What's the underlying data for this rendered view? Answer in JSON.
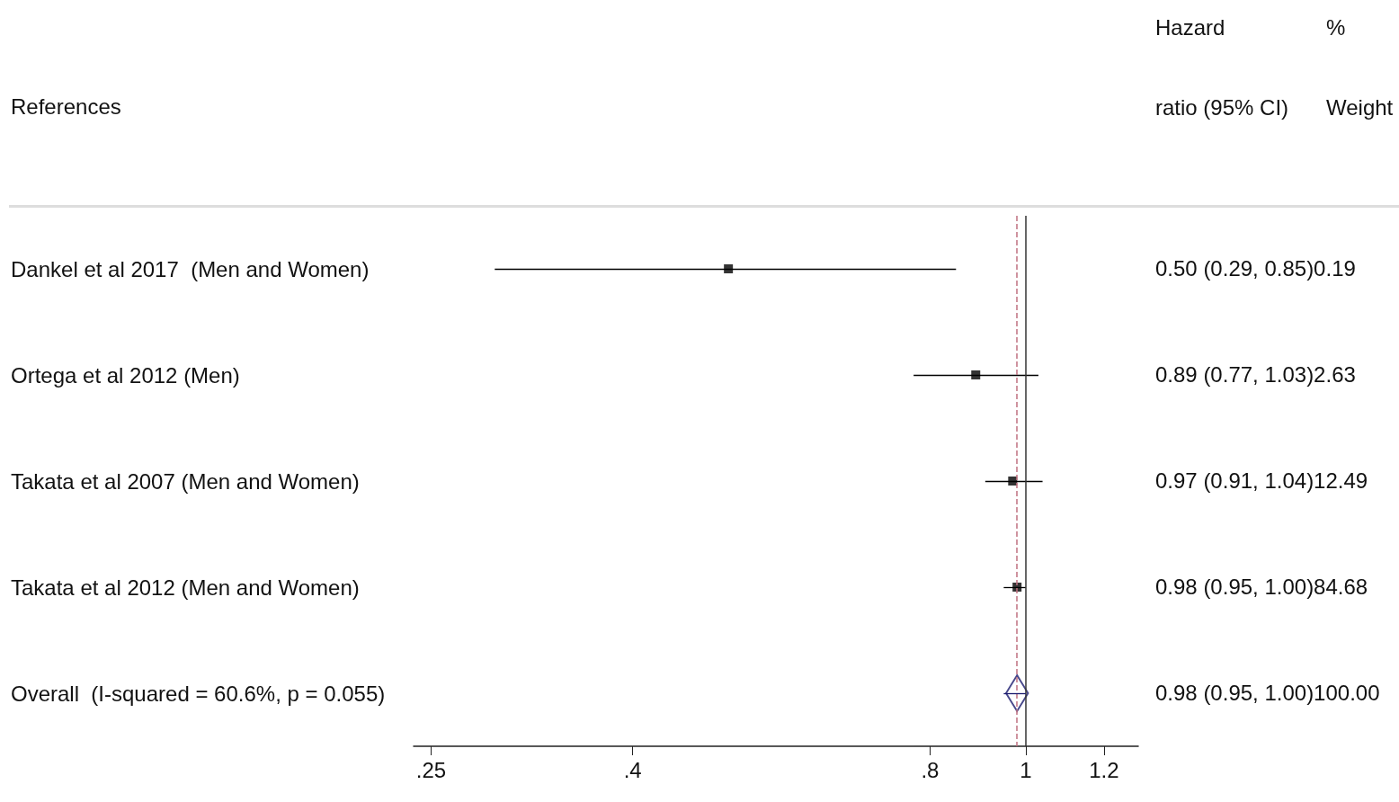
{
  "chart_data": {
    "type": "scatter",
    "orientation": "horizontal",
    "ylabel": "References",
    "categories": [
      "Dankel et al 2017  (Men and Women)",
      "Ortega et al 2012 (Men)",
      "Takata et al 2007 (Men and Women)",
      "Takata et al 2012 (Men and Women)",
      "Overall  (I-squared = 60.6%, p = 0.055)"
    ],
    "series": [
      {
        "color": "#000000",
        "marker": "square",
        "values": [
          0.5,
          0.89,
          0.97,
          0.98,
          null
        ],
        "errors": [
          [
            0.29,
            0.85
          ],
          [
            0.77,
            1.03
          ],
          [
            0.91,
            1.04
          ],
          [
            0.95,
            1.0
          ],
          null
        ]
      },
      {
        "color": "#1a1a6e",
        "marker": "diamond",
        "values": [
          null,
          null,
          null,
          null,
          0.98
        ],
        "errors": [
          null,
          null,
          null,
          null,
          [
            0.95,
            1.0
          ]
        ]
      }
    ],
    "log": "x",
    "xlim": [
      0.24,
      1.3
    ],
    "xticks": [
      {
        "value": 0.25,
        "label": ".25"
      },
      {
        "value": 0.4,
        "label": ".4"
      },
      {
        "value": 0.8,
        "label": ".8"
      },
      1,
      1.2
    ],
    "ref_lines": [
      {
        "axis": "x",
        "value": 1,
        "color": "#333333",
        "line_style": "solid"
      },
      {
        "axis": "x",
        "value": 0.98,
        "color": "#c07080",
        "line_style": "dashed"
      }
    ],
    "annotations": [
      "Hazard\nratio (95% CI)",
      "%\nWeight",
      "0.50 (0.29, 0.85)0.19",
      "0.89 (0.77, 1.03)2.63",
      "0.97 (0.91, 1.04)12.49",
      "0.98 (0.95, 1.00)84.68",
      "0.98 (0.95, 1.00)100.00"
    ],
    "grid": false
  }
}
